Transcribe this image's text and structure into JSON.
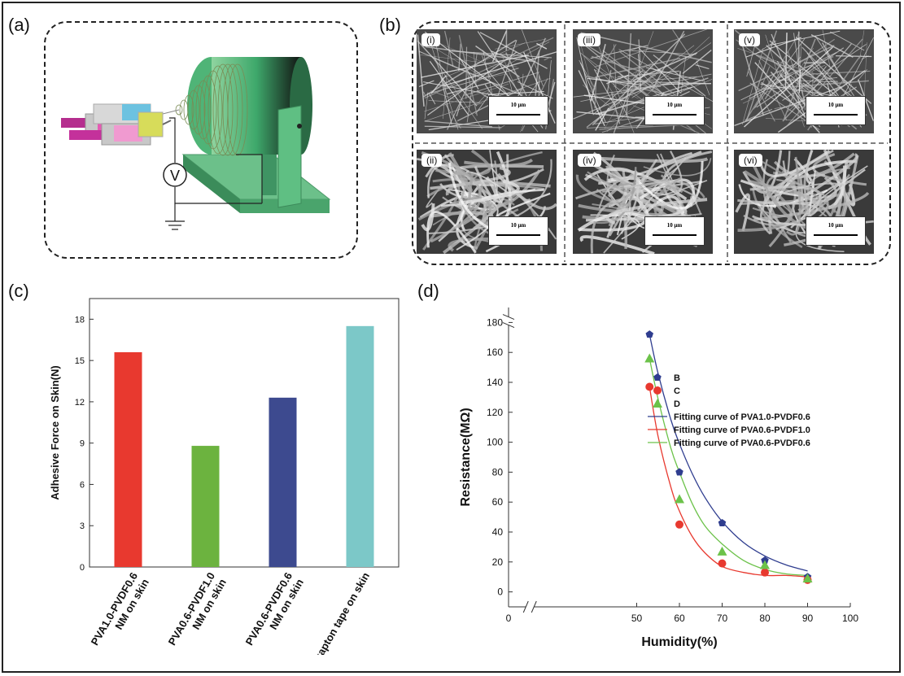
{
  "figure": {
    "panel_labels": [
      "(a)",
      "(b)",
      "(c)",
      "(d)"
    ],
    "panel_a": {
      "voltmeter_label": "V"
    },
    "panel_b": {
      "images": [
        {
          "label": "(i)",
          "scale": "10 μm"
        },
        {
          "label": "(iii)",
          "scale": "10 μm"
        },
        {
          "label": "(v)",
          "scale": "10 μm"
        },
        {
          "label": "(ii)",
          "scale": "10 μm"
        },
        {
          "label": "(iv)",
          "scale": "10 μm"
        },
        {
          "label": "(vi)",
          "scale": "10 μm"
        }
      ]
    }
  },
  "chart_data": [
    {
      "type": "bar",
      "panel": "(c)",
      "ylabel": "Adhesive Force on Skin(N)",
      "xlabel": "",
      "categories": [
        [
          "PVA1.0-PVDF0.6",
          "NM on skin"
        ],
        [
          "PVA0.6-PVDF1.0",
          "NM on skin"
        ],
        [
          "PVA0.6-PVDF0.6",
          "NM on skin"
        ],
        [
          "kapton tape on skin"
        ]
      ],
      "values": [
        15.6,
        8.8,
        12.3,
        17.5
      ],
      "colors": [
        "#e8392f",
        "#6cb33f",
        "#3d4a8f",
        "#7cc8c8"
      ],
      "ylim": [
        0,
        19.5
      ],
      "yticks": [
        0,
        3,
        6,
        9,
        12,
        15,
        18
      ],
      "grid": false
    },
    {
      "type": "scatter",
      "panel": "(d)",
      "xlabel": "Humidity(%)",
      "ylabel": "Resistance(MΩ)",
      "xlim": [
        20,
        100
      ],
      "ylim": [
        -10,
        190
      ],
      "xticks": [
        0,
        50,
        60,
        70,
        80,
        90,
        100
      ],
      "yticks": [
        0,
        20,
        40,
        60,
        80,
        100,
        120,
        140,
        160,
        180
      ],
      "axis_breaks": true,
      "legend_position": "center",
      "series": [
        {
          "name": "B",
          "marker": "pentagon",
          "color": "#2f3d8f",
          "x": [
            53,
            60,
            70,
            80,
            90
          ],
          "y": [
            172,
            80,
            46,
            21,
            10
          ]
        },
        {
          "name": "C",
          "marker": "circle",
          "color": "#e8392f",
          "x": [
            53,
            60,
            70,
            80,
            90
          ],
          "y": [
            137,
            45,
            19,
            13,
            8
          ]
        },
        {
          "name": "D",
          "marker": "triangle",
          "color": "#6cc24a",
          "x": [
            53,
            60,
            70,
            80,
            90
          ],
          "y": [
            156,
            62,
            27,
            18,
            9
          ]
        }
      ],
      "fits": [
        {
          "name": "Fitting curve of PVA1.0-PVDF0.6",
          "color": "#2f3d8f",
          "points": [
            [
              53,
              172
            ],
            [
              55,
              146
            ],
            [
              58,
              115
            ],
            [
              60,
              99
            ],
            [
              63,
              79
            ],
            [
              66,
              63
            ],
            [
              70,
              47
            ],
            [
              75,
              33
            ],
            [
              80,
              24
            ],
            [
              85,
              18
            ],
            [
              90,
              14
            ]
          ]
        },
        {
          "name": "Fitting curve of PVA0.6-PVDF1.0",
          "color": "#e8392f",
          "points": [
            [
              53,
              137
            ],
            [
              55,
              104
            ],
            [
              58,
              70
            ],
            [
              60,
              54
            ],
            [
              63,
              37
            ],
            [
              66,
              26
            ],
            [
              70,
              17
            ],
            [
              75,
              13
            ],
            [
              80,
              11
            ],
            [
              85,
              11
            ],
            [
              90,
              10
            ]
          ]
        },
        {
          "name": "Fitting curve of PVA0.6-PVDF0.6",
          "color": "#6cc24a",
          "points": [
            [
              53,
              156
            ],
            [
              55,
              129
            ],
            [
              58,
              96
            ],
            [
              60,
              80
            ],
            [
              63,
              59
            ],
            [
              66,
              44
            ],
            [
              70,
              32
            ],
            [
              75,
              21
            ],
            [
              80,
              15
            ],
            [
              85,
              12
            ],
            [
              90,
              11
            ]
          ]
        }
      ]
    }
  ]
}
